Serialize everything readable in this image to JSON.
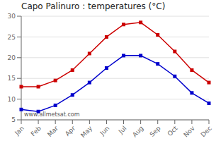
{
  "chart_data": {
    "type": "line",
    "title": "Capo Palinuro : temperatures (°C)",
    "categories": [
      "Jan",
      "Feb",
      "Mar",
      "Apr",
      "May",
      "Jun",
      "Jul",
      "Aug",
      "Sep",
      "Oct",
      "Nov",
      "Dec"
    ],
    "series": [
      {
        "color": "#cc0000",
        "values": [
          13,
          13,
          14.5,
          17,
          21,
          25,
          28,
          28.5,
          25.5,
          21.5,
          17,
          14
        ]
      },
      {
        "color": "#0000cc",
        "values": [
          7.5,
          7,
          8.5,
          11,
          14,
          17.5,
          20.5,
          20.5,
          18.5,
          15.5,
          11.5,
          9
        ]
      }
    ],
    "ylim": [
      5,
      30
    ],
    "yticks": [
      5,
      10,
      15,
      20,
      25,
      30
    ],
    "grid": true,
    "marker": "square",
    "annotations": [
      "www.allmetsat.com"
    ]
  }
}
